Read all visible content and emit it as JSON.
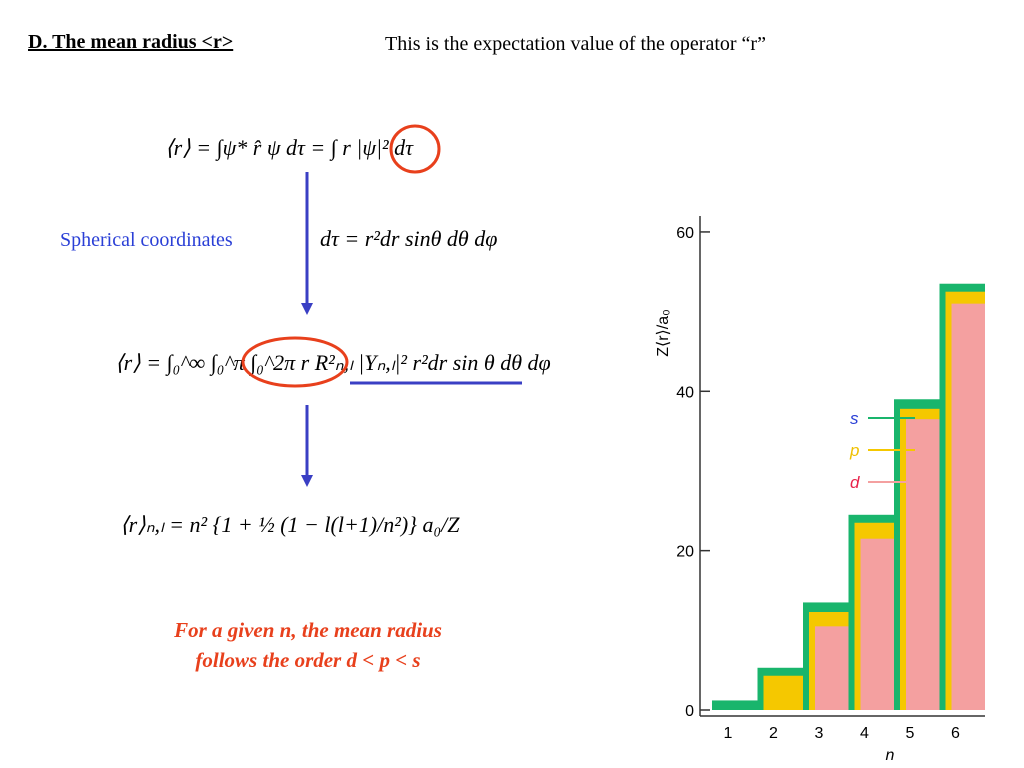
{
  "heading": "D. The mean radius <r>",
  "note": "This is the expectation value of the operator “r”",
  "equations": {
    "definition": "⟨r⟩ = ∫ψ* r̂ ψ dτ = ∫ r |ψ|² dτ",
    "volume_element": "dτ = r²dr sinθ dθ dφ",
    "spherical_integral": "⟨r⟩ = ∫₀^∞ ∫₀^π ∫₀^2π r R²ₙ,ₗ |Yₙ,ₗ|² r²dr sin θ dθ dφ",
    "result": "⟨r⟩ₙ,ₗ = n² {1 + ½ (1 − l(l+1)/n²)} a₀/Z"
  },
  "spherical_label": "Spherical coordinates",
  "conclusion": [
    "For a given n, the mean radius",
    "follows the order d < p < s"
  ],
  "chart_data": {
    "type": "bar",
    "xlabel": "n",
    "ylabel": "Z⟨r⟩/a₀",
    "categories": [
      "1",
      "2",
      "3",
      "4",
      "5",
      "6"
    ],
    "series": [
      {
        "name": "s",
        "color": "#19b56c",
        "label_color": "#2a3fd6",
        "values": [
          1.2,
          5.3,
          13.5,
          24.5,
          39,
          53.5
        ]
      },
      {
        "name": "p",
        "color": "#f5c800",
        "label_color": "#f0c000",
        "values": [
          null,
          4.3,
          12.3,
          23.5,
          37.8,
          52.5
        ]
      },
      {
        "name": "d",
        "color": "#f4a0a0",
        "label_color": "#e8244c",
        "values": [
          null,
          null,
          10.5,
          21.5,
          36.5,
          51
        ]
      }
    ],
    "ylim": [
      0,
      62
    ],
    "yticks": [
      0,
      20,
      40,
      60
    ],
    "legend": "center"
  }
}
